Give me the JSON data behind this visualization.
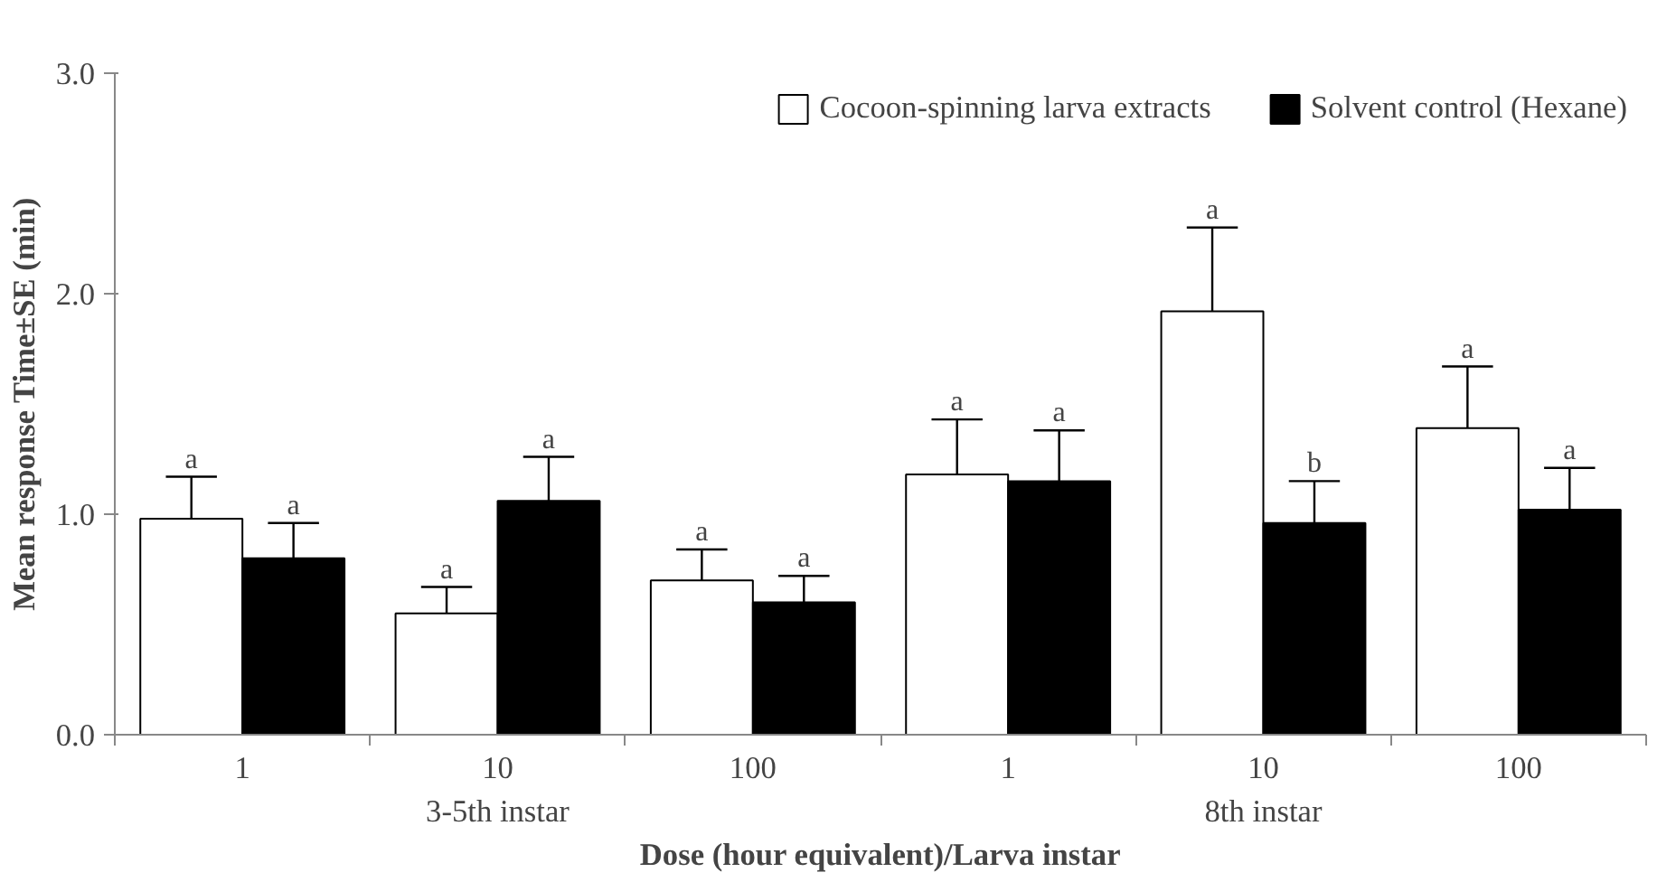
{
  "chart_data": {
    "type": "bar",
    "xlabel": "Dose (hour equivalent)/Larva instar",
    "ylabel": "Mean response Time±SE (min)",
    "categories": [
      "1",
      "10",
      "100",
      "1",
      "10",
      "100"
    ],
    "series": [
      {
        "name": "Cocoon-spinning larva extracts",
        "color": "#ffffff",
        "values": [
          0.98,
          0.55,
          0.7,
          1.18,
          1.92,
          1.39
        ],
        "errors": [
          [
            0.98,
            1.17
          ],
          [
            0.55,
            0.67
          ],
          [
            0.7,
            0.84
          ],
          [
            1.18,
            1.43
          ],
          [
            1.92,
            2.3
          ],
          [
            1.39,
            1.67
          ]
        ],
        "value_labels": [
          "a",
          "a",
          "a",
          "a",
          "a",
          "a"
        ]
      },
      {
        "name": "Solvent control (Hexane)",
        "color": "#000000",
        "values": [
          0.8,
          1.06,
          0.6,
          1.15,
          0.96,
          1.02
        ],
        "errors": [
          [
            0.8,
            0.96
          ],
          [
            1.06,
            1.26
          ],
          [
            0.6,
            0.72
          ],
          [
            1.15,
            1.38
          ],
          [
            0.96,
            1.15
          ],
          [
            1.02,
            1.21
          ]
        ],
        "value_labels": [
          "a",
          "a",
          "a",
          "a",
          "b",
          "a"
        ]
      }
    ],
    "annotations": [
      "3-5th instar",
      "8th instar"
    ],
    "ylim": [
      0,
      3.0
    ],
    "yticks": [
      {
        "value": 0,
        "label": "0.0"
      },
      {
        "value": 1,
        "label": "1.0"
      },
      {
        "value": 2,
        "label": "2.0"
      },
      {
        "value": 3,
        "label": "3.0"
      }
    ],
    "grid": false,
    "legend": "top"
  }
}
